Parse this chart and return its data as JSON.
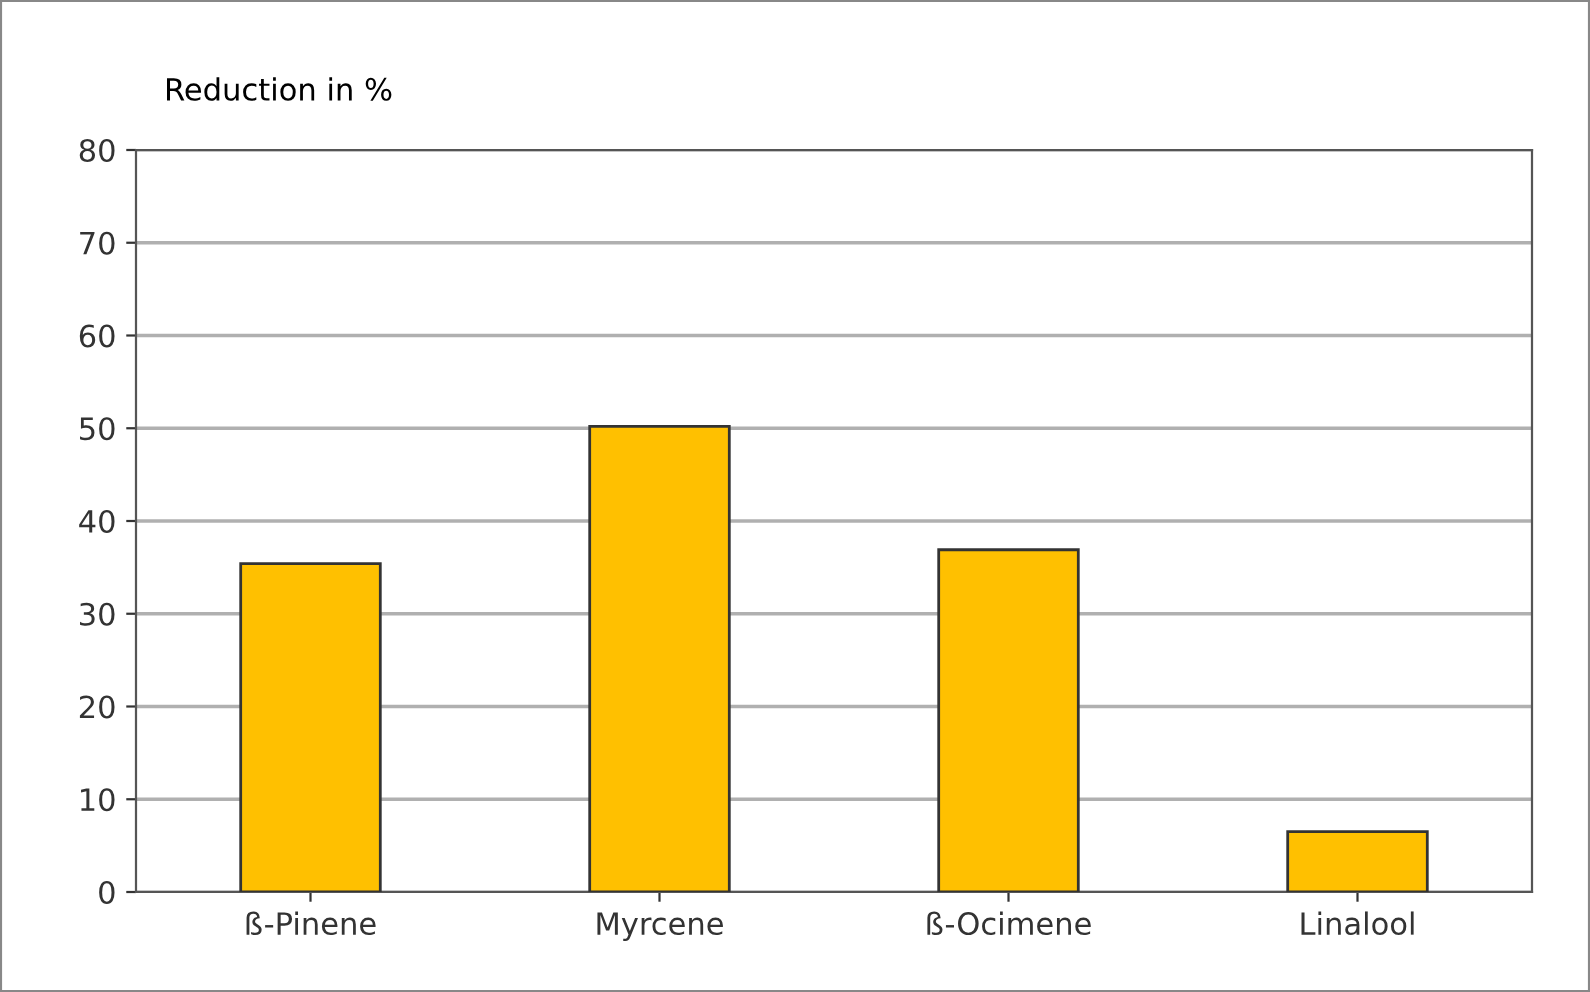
{
  "chart_data": {
    "type": "bar",
    "ylabel": "Reduction in %",
    "categories": [
      "ß-Pinene",
      "Myrcene",
      "ß-Ocimene",
      "Linalool"
    ],
    "values": [
      35.4,
      50.2,
      36.9,
      6.5
    ],
    "color": "#ffc000",
    "ylim": [
      0,
      80
    ],
    "yticks": [
      0,
      10,
      20,
      30,
      40,
      50,
      60,
      70,
      80
    ],
    "grid": "y"
  }
}
